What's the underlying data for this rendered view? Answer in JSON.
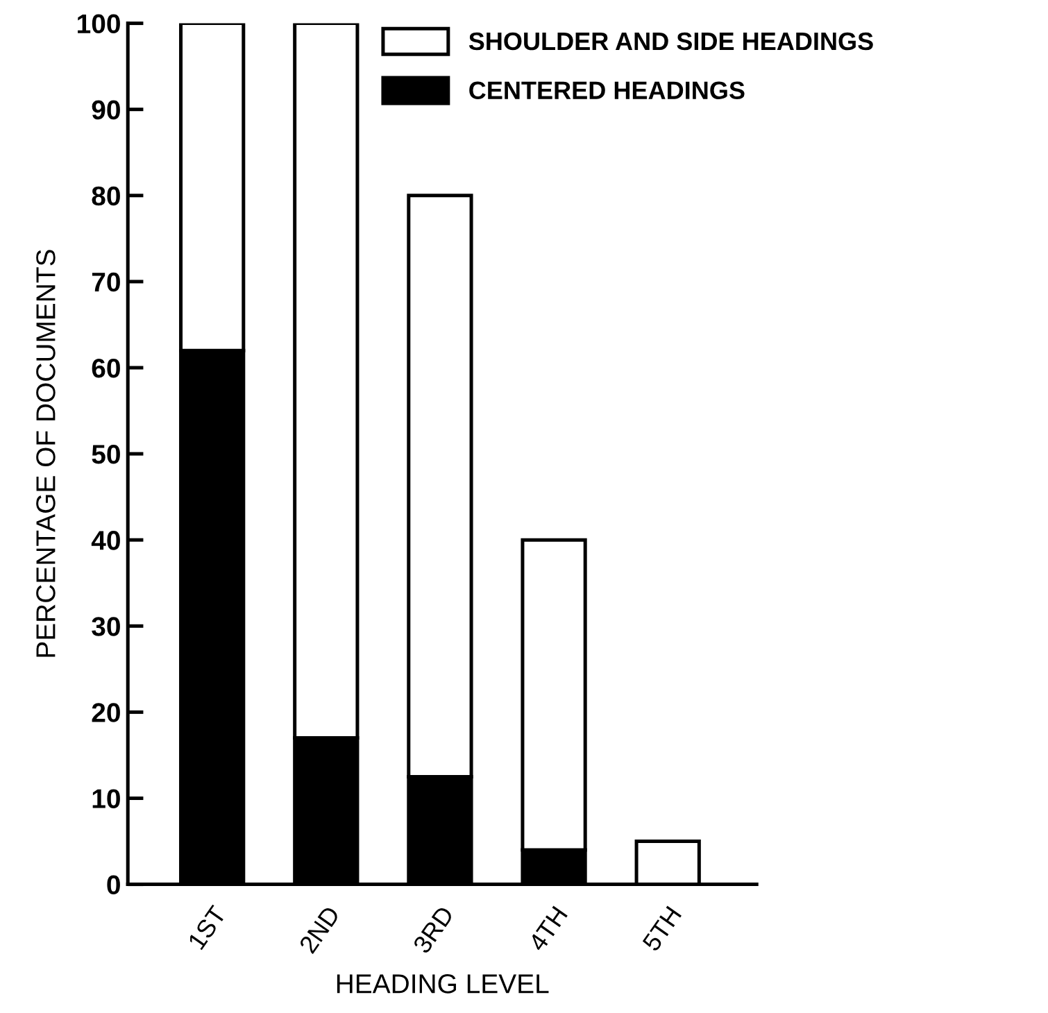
{
  "chart_data": {
    "type": "bar",
    "stacked": true,
    "xlabel": "HEADING LEVEL",
    "ylabel": "PERCENTAGE OF DOCUMENTS",
    "categories": [
      "1ST",
      "2ND",
      "3RD",
      "4TH",
      "5TH"
    ],
    "series": [
      {
        "name": "CENTERED HEADINGS",
        "color": "#000000",
        "values": [
          62,
          17,
          12.5,
          4,
          0
        ]
      },
      {
        "name": "SHOULDER AND SIDE HEADINGS",
        "color": "#ffffff",
        "values": [
          38,
          83,
          67.5,
          36,
          5
        ]
      }
    ],
    "ylim": [
      0,
      100
    ],
    "yticks": [
      0,
      10,
      20,
      30,
      40,
      50,
      60,
      70,
      80,
      90,
      100
    ],
    "grid": false,
    "legend": "top right"
  }
}
